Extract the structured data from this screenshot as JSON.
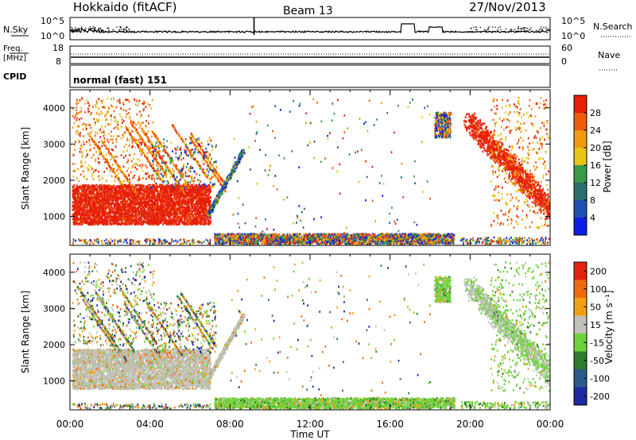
{
  "header": {
    "title": "Hokkaido (fitACF)",
    "beam": "Beam 13",
    "date": "27/Nov/2013"
  },
  "nsky_panel": {
    "left_label": "N.Sky",
    "right_label": "N.Search",
    "left_ticks": [
      "10^5",
      "10^0"
    ],
    "right_ticks": [
      "10^5",
      "10^0"
    ]
  },
  "freq_panel": {
    "left_label_line1": "Freq.",
    "left_label_line2": "[MHz]",
    "right_label": "Nave",
    "left_ticks": [
      "18",
      "8"
    ],
    "right_ticks": [
      "60",
      "0"
    ]
  },
  "cpid_panel": {
    "label": "CPID",
    "text": "normal (fast) 151"
  },
  "x_axis": {
    "label": "Time UT",
    "ticks": [
      "00:00",
      "04:00",
      "08:00",
      "12:00",
      "16:00",
      "20:00",
      "00:00"
    ]
  },
  "colors": {
    "power": [
      "#0a1ee6",
      "#1e50b4",
      "#2a6e6e",
      "#3a9a4a",
      "#e8c414",
      "#f09a10",
      "#f05a0a",
      "#e61e0a"
    ],
    "velocity": [
      "#1e2aa0",
      "#2a5a8a",
      "#2e7a2e",
      "#6ed23a",
      "#c0c0b8",
      "#f0a010",
      "#f06a10",
      "#e62010"
    ]
  },
  "chart_data": [
    {
      "type": "heatmap",
      "name_panel": "power",
      "ylabel": "Slant Range [km]",
      "xlabel": "Time UT",
      "xlim": [
        0,
        24
      ],
      "ylim": [
        200,
        4500
      ],
      "y_ticks": [
        1000,
        2000,
        3000,
        4000
      ],
      "colorbar": {
        "label": "Power [dB]",
        "ticks": [
          "28",
          "24",
          "20",
          "16",
          "12",
          "8",
          "4"
        ]
      }
    },
    {
      "type": "heatmap",
      "name_panel": "velocity",
      "ylabel": "Slant Range [km]",
      "xlabel": "Time UT",
      "xlim": [
        0,
        24
      ],
      "ylim": [
        200,
        4500
      ],
      "y_ticks": [
        1000,
        2000,
        3000,
        4000
      ],
      "colorbar": {
        "label": "Velocity [m s⁻¹]",
        "ticks": [
          "200",
          "100",
          "50",
          "15",
          "-15",
          "-50",
          "-100",
          "-200"
        ]
      }
    }
  ]
}
